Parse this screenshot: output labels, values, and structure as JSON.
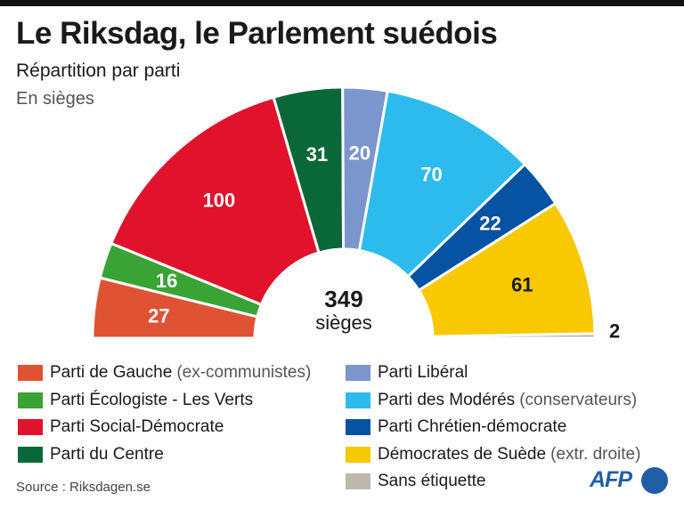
{
  "header": {
    "title": "Le Riksdag, le Parlement suédois",
    "subtitle": "Répartition par parti",
    "unit": "En sièges"
  },
  "center": {
    "total": "349",
    "label": "sièges"
  },
  "chart_data": {
    "type": "pie",
    "variant": "half-donut",
    "total": 349,
    "slices": [
      {
        "name": "Parti de Gauche",
        "value": 27,
        "label": "27",
        "color": "#e05234"
      },
      {
        "name": "Parti Écologiste - Les Verts",
        "value": 16,
        "label": "16",
        "color": "#3aa335"
      },
      {
        "name": "Parti Social-Démocrate",
        "value": 100,
        "label": "100",
        "color": "#e1122b"
      },
      {
        "name": "Parti du Centre",
        "value": 31,
        "label": "31",
        "color": "#0a6838"
      },
      {
        "name": "Parti Libéral",
        "value": 20,
        "label": "20",
        "color": "#7b96cc"
      },
      {
        "name": "Parti des Modérés",
        "value": 70,
        "label": "70",
        "color": "#2dbbee"
      },
      {
        "name": "Parti Chrétien-démocrate",
        "value": 22,
        "label": "22",
        "color": "#0652a3"
      },
      {
        "name": "Démocrates de Suède",
        "value": 61,
        "label": "61",
        "color": "#f8c800"
      },
      {
        "name": "Sans étiquette",
        "value": 2,
        "label": "2",
        "color": "#bdb9ac"
      }
    ]
  },
  "legend": {
    "left": [
      {
        "name": "Parti de Gauche",
        "note": "(ex-communistes)",
        "color": "#e05234"
      },
      {
        "name": "Parti Écologiste - Les Verts",
        "note": "",
        "color": "#3aa335"
      },
      {
        "name": "Parti Social-Démocrate",
        "note": "",
        "color": "#e1122b"
      },
      {
        "name": "Parti du Centre",
        "note": "",
        "color": "#0a6838"
      }
    ],
    "right": [
      {
        "name": "Parti Libéral",
        "note": "",
        "color": "#7b96cc"
      },
      {
        "name": "Parti des Modérés",
        "note": "(conservateurs)",
        "color": "#2dbbee"
      },
      {
        "name": "Parti Chrétien-démocrate",
        "note": "",
        "color": "#0652a3"
      },
      {
        "name": "Démocrates de Suède",
        "note": "(extr. droite)",
        "color": "#f8c800"
      },
      {
        "name": "Sans étiquette",
        "note": "",
        "color": "#bdb9ac"
      }
    ]
  },
  "footer": {
    "source": "Source : Riksdagen.se",
    "logo": "AFP"
  }
}
